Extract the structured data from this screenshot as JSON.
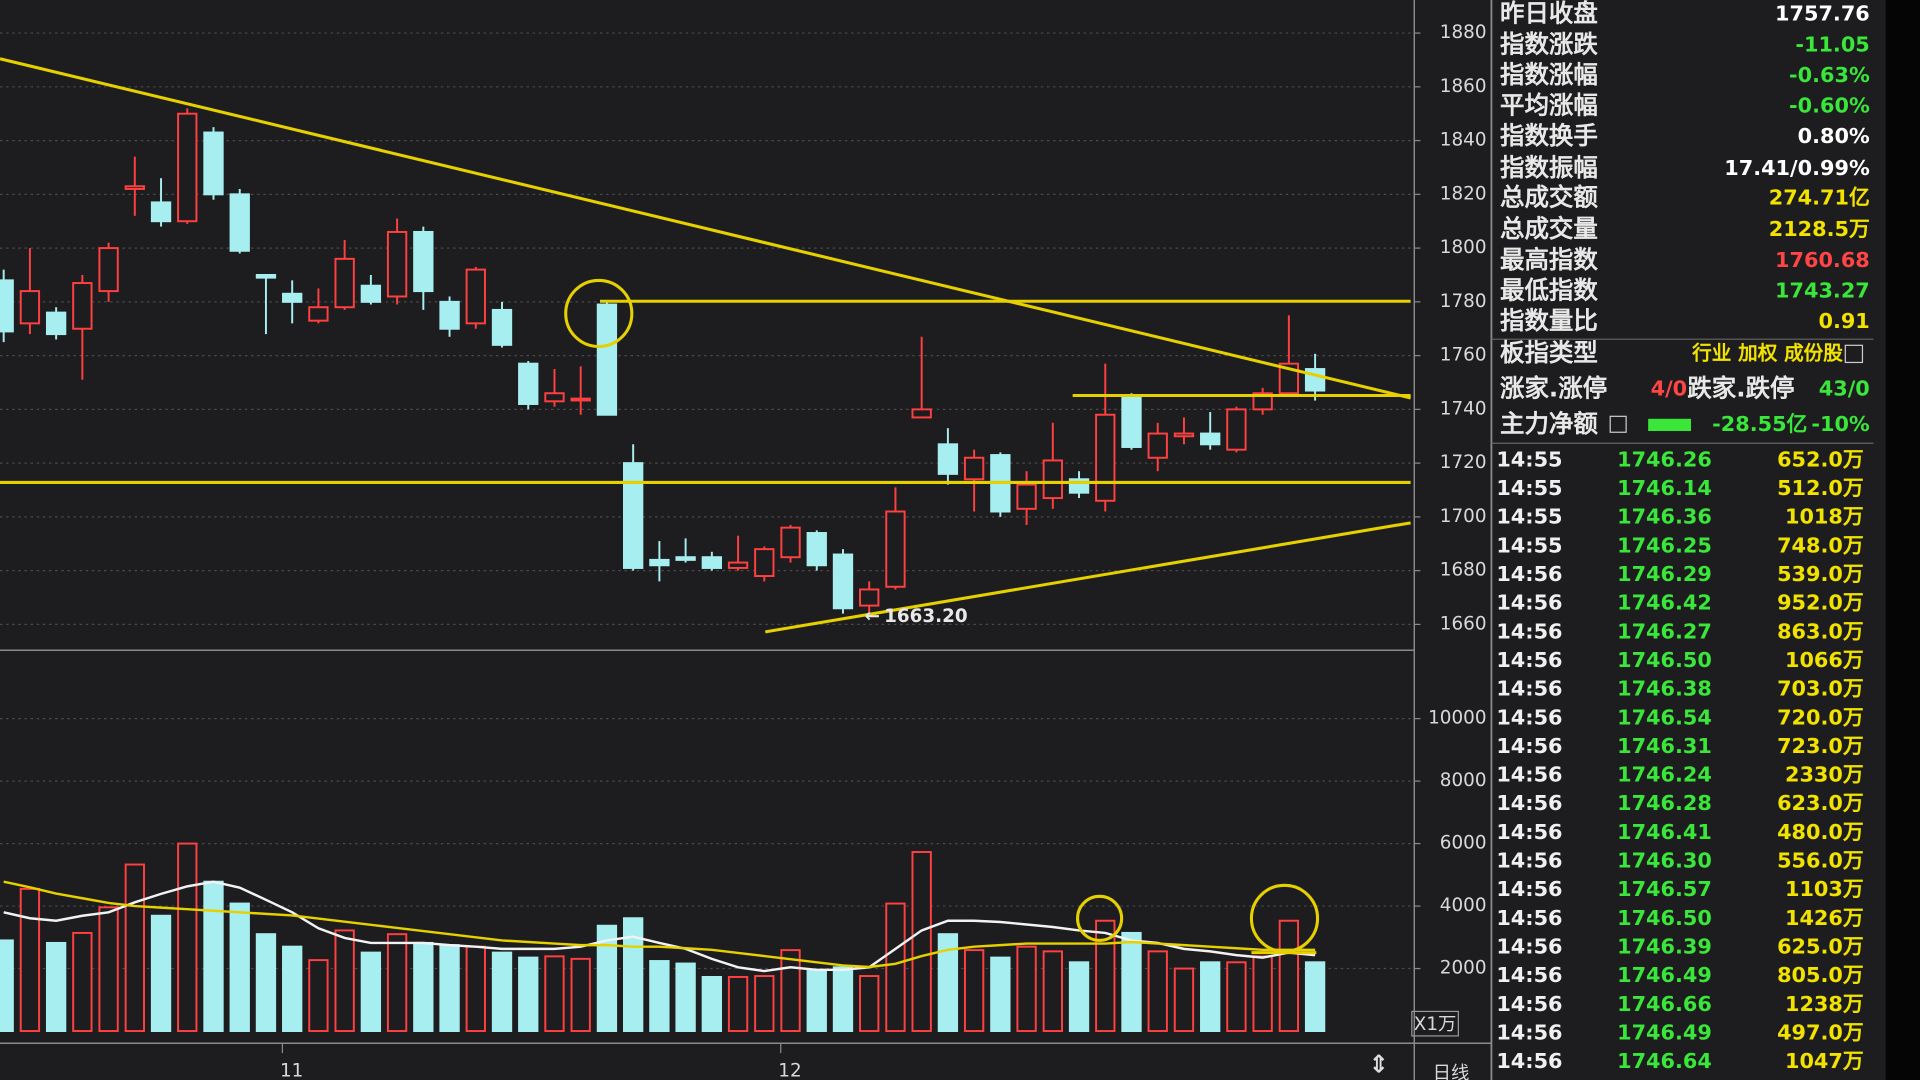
{
  "chart_data": {
    "type": "candlestick",
    "categories": [
      null,
      null,
      null,
      null,
      null,
      null,
      null,
      null,
      null,
      null,
      null,
      "11",
      null,
      null,
      null,
      null,
      null,
      null,
      null,
      null,
      null,
      null,
      null,
      null,
      null,
      null,
      null,
      null,
      null,
      null,
      "12",
      null,
      null,
      null,
      null,
      null,
      null,
      null,
      null,
      null,
      null,
      null,
      null,
      null,
      null,
      null,
      null,
      null,
      null,
      null,
      null
    ],
    "open": [
      1788,
      1772,
      1776,
      1770,
      1784,
      1822,
      1817,
      1810,
      1843,
      1820,
      1790,
      1783,
      1773,
      1778,
      1786,
      1782,
      1806,
      1780,
      1772,
      1777,
      1757,
      1743,
      1744,
      1779,
      1720,
      1684,
      1685,
      1685,
      1681,
      1678,
      1685,
      1694,
      1686,
      1667,
      1674,
      1737,
      1727,
      1714,
      1723,
      1703,
      1707,
      1714,
      1706,
      1745,
      1722,
      1730,
      1731,
      1725,
      1740,
      1746,
      1755
    ],
    "high": [
      1792,
      1800,
      1778,
      1790,
      1802,
      1834,
      1826,
      1852,
      1845,
      1822,
      1790,
      1788,
      1785,
      1803,
      1790,
      1811,
      1808,
      1782,
      1793,
      1780,
      1758,
      1755,
      1756,
      1780,
      1727,
      1691,
      1692,
      1687,
      1693,
      1689,
      1697,
      1695,
      1688,
      1676,
      1711,
      1767,
      1733,
      1725,
      1724,
      1717,
      1735,
      1717,
      1757,
      1746,
      1735,
      1737,
      1739,
      1741,
      1748,
      1775,
      1760.68
    ],
    "low": [
      1765,
      1768,
      1766,
      1751,
      1780,
      1812,
      1808,
      1809,
      1818,
      1798,
      1768,
      1772,
      1772,
      1777,
      1779,
      1779,
      1777,
      1767,
      1770,
      1763,
      1740,
      1741,
      1738,
      1738,
      1680,
      1676,
      1683,
      1680,
      1680,
      1676,
      1683,
      1680,
      1664,
      1663.2,
      1673,
      1737,
      1712,
      1702,
      1700,
      1697,
      1703,
      1707,
      1702,
      1725,
      1717,
      1727,
      1725,
      1724,
      1738,
      1745,
      1743.27
    ],
    "close": [
      1769,
      1784,
      1768,
      1787,
      1800,
      1823,
      1810,
      1850,
      1820,
      1799,
      1789,
      1780,
      1778,
      1796,
      1780,
      1806,
      1784,
      1770,
      1792,
      1764,
      1742,
      1746,
      1744,
      1738,
      1681,
      1682,
      1684,
      1681,
      1683,
      1688,
      1696,
      1682,
      1666,
      1673,
      1702,
      1740,
      1716,
      1722,
      1702,
      1712,
      1721,
      1709,
      1738,
      1726,
      1731,
      1731,
      1727,
      1740,
      1746,
      1757,
      1747
    ],
    "volume": [
      2900,
      4550,
      2820,
      3140,
      3960,
      5330,
      3690,
      6000,
      4780,
      4080,
      3100,
      2700,
      2270,
      3220,
      2510,
      3100,
      2820,
      2750,
      2700,
      2510,
      2350,
      2390,
      2310,
      3370,
      3610,
      2240,
      2160,
      1730,
      1730,
      1760,
      2590,
      1920,
      2040,
      1760,
      4080,
      5730,
      3100,
      2590,
      2350,
      2700,
      2550,
      2200,
      3530,
      3140,
      2550,
      2000,
      2200,
      2200,
      2390,
      3530,
      2200
    ],
    "volume_ma": [
      {
        "color": "#f2f2f2",
        "values": [
          3800,
          3610,
          3530,
          3690,
          3800,
          4120,
          4390,
          4630,
          4780,
          4590,
          4200,
          3800,
          3290,
          2980,
          2820,
          2820,
          2820,
          2750,
          2700,
          2630,
          2630,
          2630,
          2700,
          2900,
          3020,
          2820,
          2630,
          2310,
          2040,
          1920,
          2040,
          1960,
          1960,
          2040,
          2630,
          3220,
          3530,
          3530,
          3490,
          3410,
          3330,
          3220,
          3140,
          2900,
          2820,
          2630,
          2550,
          2430,
          2350,
          2510,
          2430
        ]
      },
      {
        "color": "#e6d000",
        "values": [
          4780,
          4600,
          4400,
          4250,
          4100,
          4000,
          3950,
          3900,
          3850,
          3800,
          3750,
          3700,
          3600,
          3500,
          3400,
          3300,
          3200,
          3100,
          3000,
          2900,
          2850,
          2800,
          2750,
          2750,
          2700,
          2700,
          2650,
          2600,
          2500,
          2400,
          2300,
          2200,
          2100,
          2050,
          2150,
          2400,
          2600,
          2700,
          2750,
          2800,
          2800,
          2800,
          2800,
          2850,
          2800,
          2750,
          2700,
          2650,
          2600,
          2600,
          2600
        ]
      }
    ],
    "up_color": "#ff4040",
    "down_color": "#a6eef0",
    "ylim": [
      1650.4,
      1892.3
    ],
    "yticks": [
      1660,
      1680,
      1700,
      1720,
      1740,
      1760,
      1780,
      1800,
      1820,
      1840,
      1860,
      1880
    ],
    "y2lim": [
      0,
      12190
    ],
    "y2ticks": [
      2000,
      4000,
      6000,
      8000,
      10000
    ],
    "y2_unit": "X1万",
    "low_annotation": "1663.20",
    "period": "日线",
    "grid": true
  },
  "quote_panel": {
    "rows": [
      {
        "label": "昨日收盘",
        "value": "1757.76",
        "color": "#ffffff"
      },
      {
        "label": "指数涨跌",
        "value": "-11.05",
        "color": "#39e639"
      },
      {
        "label": "指数涨幅",
        "value": "-0.63%",
        "color": "#39e639"
      },
      {
        "label": "平均涨幅",
        "value": "-0.60%",
        "color": "#39e639"
      },
      {
        "label": "指数换手",
        "value": "0.80%",
        "color": "#ffffff"
      },
      {
        "label": "指数振幅",
        "value": "17.41/0.99%",
        "color": "#ffffff"
      },
      {
        "label": "总成交额",
        "value": "274.71亿",
        "color": "#f2e200"
      },
      {
        "label": "总成交量",
        "value": "2128.5万",
        "color": "#f2e200"
      },
      {
        "label": "最高指数",
        "value": "1760.68",
        "color": "#ff4545"
      },
      {
        "label": "最低指数",
        "value": "1743.27",
        "color": "#39e639"
      },
      {
        "label": "指数量比",
        "value": "0.91",
        "color": "#f2e200"
      },
      {
        "label": "板指类型",
        "value": "行业 加权 成份股",
        "color": "#f2e200"
      }
    ],
    "breadth": {
      "up_label": "涨家.涨停",
      "up_value": "4/0",
      "down_label": "跌家.跌停",
      "down_value": "43/0"
    },
    "net_flow": {
      "label": "主力净额",
      "amount": "-28.55亿",
      "percent": "-10%"
    },
    "ticks": [
      [
        "14:55",
        "1746.26",
        "652.0万"
      ],
      [
        "14:55",
        "1746.14",
        "512.0万"
      ],
      [
        "14:55",
        "1746.36",
        "1018万"
      ],
      [
        "14:55",
        "1746.25",
        "748.0万"
      ],
      [
        "14:56",
        "1746.29",
        "539.0万"
      ],
      [
        "14:56",
        "1746.42",
        "952.0万"
      ],
      [
        "14:56",
        "1746.27",
        "863.0万"
      ],
      [
        "14:56",
        "1746.50",
        "1066万"
      ],
      [
        "14:56",
        "1746.38",
        "703.0万"
      ],
      [
        "14:56",
        "1746.54",
        "720.0万"
      ],
      [
        "14:56",
        "1746.31",
        "723.0万"
      ],
      [
        "14:56",
        "1746.24",
        "2330万"
      ],
      [
        "14:56",
        "1746.28",
        "623.0万"
      ],
      [
        "14:56",
        "1746.41",
        "480.0万"
      ],
      [
        "14:56",
        "1746.30",
        "556.0万"
      ],
      [
        "14:56",
        "1746.57",
        "1103万"
      ],
      [
        "14:56",
        "1746.50",
        "1426万"
      ],
      [
        "14:56",
        "1746.39",
        "625.0万"
      ],
      [
        "14:56",
        "1746.49",
        "805.0万"
      ],
      [
        "14:56",
        "1746.66",
        "1238万"
      ],
      [
        "14:56",
        "1746.49",
        "497.0万"
      ],
      [
        "14:56",
        "1746.64",
        "1047万"
      ]
    ]
  }
}
